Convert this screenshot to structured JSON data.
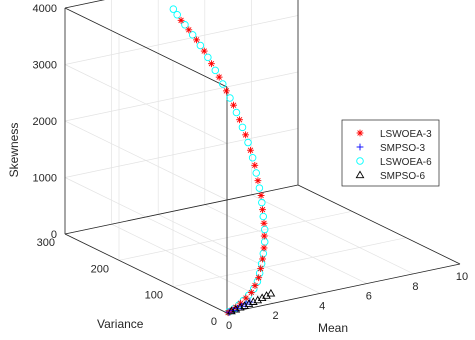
{
  "chart_data": {
    "type": "scatter",
    "projection": "3d",
    "xlabel": "Mean",
    "ylabel": "Variance",
    "zlabel": "Skewness",
    "xlim": [
      0,
      10
    ],
    "ylim": [
      0,
      300
    ],
    "zlim": [
      0,
      4000
    ],
    "xticks": [
      "0",
      "2",
      "4",
      "6",
      "8",
      "10"
    ],
    "yticks": [
      "0",
      "100",
      "200",
      "300"
    ],
    "zticks": [
      "0",
      "1000",
      "2000",
      "3000",
      "4000"
    ],
    "grid": true,
    "legend_position": "right",
    "series": [
      {
        "name": "LSWOEA-3",
        "marker": "asterisk",
        "color": "#ff0000",
        "points": [
          [
            0.05,
            0.2,
            0
          ],
          [
            0.25,
            1.5,
            20
          ],
          [
            0.45,
            3,
            50
          ],
          [
            0.7,
            5,
            90
          ],
          [
            1.0,
            8,
            140
          ],
          [
            1.3,
            11,
            200
          ],
          [
            1.55,
            15,
            280
          ],
          [
            1.8,
            19,
            380
          ],
          [
            2.0,
            24,
            500
          ],
          [
            2.2,
            29,
            630
          ],
          [
            2.4,
            35,
            780
          ],
          [
            2.55,
            41,
            950
          ],
          [
            2.7,
            48,
            1130
          ],
          [
            2.8,
            55,
            1330
          ],
          [
            2.9,
            62,
            1540
          ],
          [
            2.95,
            70,
            1760
          ],
          [
            3.0,
            78,
            1990
          ],
          [
            3.0,
            86,
            2220
          ],
          [
            3.0,
            95,
            2450
          ],
          [
            2.95,
            104,
            2680
          ],
          [
            2.9,
            113,
            2900
          ],
          [
            2.8,
            122,
            3120
          ],
          [
            2.7,
            131,
            3330
          ],
          [
            2.6,
            141,
            3530
          ],
          [
            2.5,
            150,
            3720
          ],
          [
            2.4,
            160,
            3880
          ],
          [
            2.3,
            170,
            4020
          ],
          [
            2.2,
            180,
            4150
          ]
        ]
      },
      {
        "name": "SMPSO-3",
        "marker": "plus",
        "color": "#0000ff",
        "points": [
          [
            0.1,
            0.3,
            5
          ],
          [
            0.3,
            1.2,
            15
          ],
          [
            0.5,
            2,
            30
          ],
          [
            0.7,
            3,
            45
          ],
          [
            0.9,
            4,
            60
          ],
          [
            1.1,
            5,
            75
          ]
        ]
      },
      {
        "name": "LSWOEA-6",
        "marker": "circle",
        "color": "#00ffff",
        "points": [
          [
            0.1,
            0.5,
            10
          ],
          [
            0.35,
            2,
            35
          ],
          [
            0.6,
            4,
            70
          ],
          [
            0.85,
            6.5,
            115
          ],
          [
            1.15,
            9.5,
            170
          ],
          [
            1.45,
            13,
            240
          ],
          [
            1.7,
            17,
            330
          ],
          [
            1.9,
            21.5,
            440
          ],
          [
            2.1,
            26.5,
            565
          ],
          [
            2.3,
            32,
            705
          ],
          [
            2.5,
            38,
            865
          ],
          [
            2.65,
            44.5,
            1040
          ],
          [
            2.75,
            51.5,
            1230
          ],
          [
            2.85,
            58.5,
            1435
          ],
          [
            2.92,
            66,
            1650
          ],
          [
            2.97,
            74,
            1875
          ],
          [
            3.0,
            82,
            2105
          ],
          [
            3.0,
            90.5,
            2335
          ],
          [
            2.97,
            99.5,
            2565
          ],
          [
            2.92,
            108.5,
            2790
          ],
          [
            2.85,
            117.5,
            3010
          ],
          [
            2.75,
            126.5,
            3225
          ],
          [
            2.65,
            136,
            3430
          ],
          [
            2.55,
            145.5,
            3625
          ],
          [
            2.45,
            155,
            3800
          ],
          [
            2.35,
            165,
            3950
          ],
          [
            2.25,
            175,
            4090
          ],
          [
            2.15,
            185,
            4230
          ],
          [
            2.1,
            190,
            4310
          ]
        ]
      },
      {
        "name": "SMPSO-6",
        "marker": "triangle",
        "color": "#000000",
        "points": [
          [
            0.2,
            0.5,
            15
          ],
          [
            0.4,
            1,
            25
          ],
          [
            0.6,
            1.5,
            40
          ],
          [
            0.8,
            2,
            50
          ],
          [
            1.0,
            2.5,
            65
          ],
          [
            1.2,
            3,
            80
          ],
          [
            1.4,
            3.5,
            90
          ],
          [
            1.6,
            4,
            110
          ],
          [
            1.8,
            4.5,
            130
          ],
          [
            2.0,
            5,
            150
          ]
        ]
      }
    ]
  }
}
